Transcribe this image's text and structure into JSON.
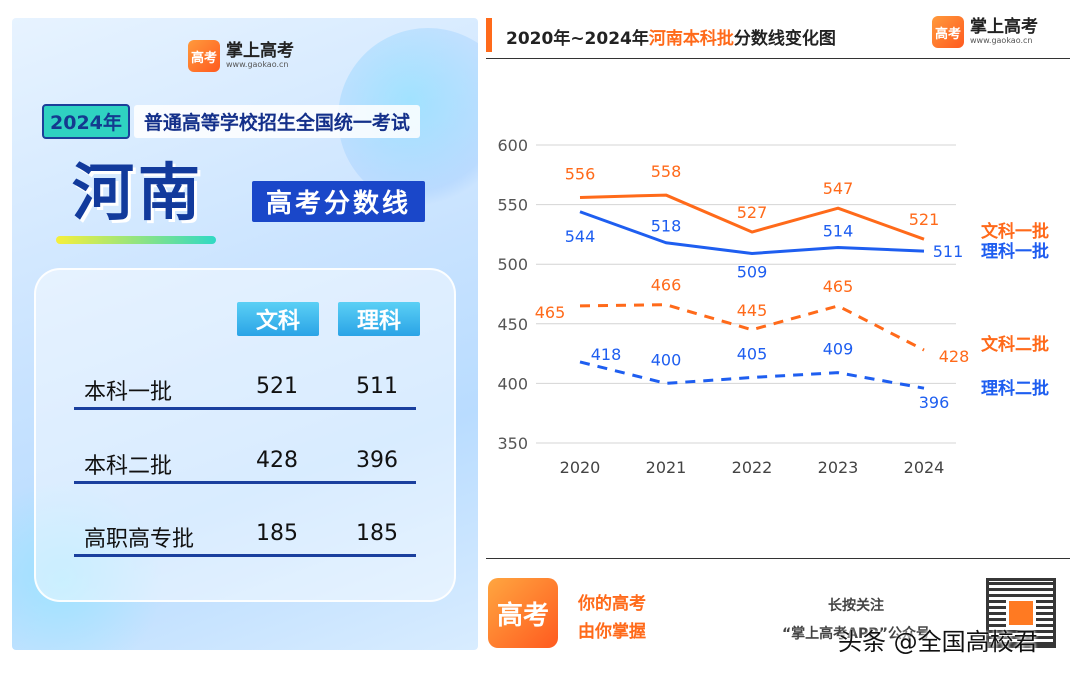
{
  "left": {
    "brand_name": "掌上高考",
    "brand_url": "www.gaokao.cn",
    "logo_text": "高考",
    "year": "2024年",
    "exam": "普通高等学校招生全国统一考试",
    "province": "河南",
    "subtitle": "高考分数线",
    "columns": [
      "文科",
      "理科"
    ],
    "rows": [
      {
        "label": "本科一批",
        "wenke": "521",
        "like": "511"
      },
      {
        "label": "本科二批",
        "wenke": "428",
        "like": "396"
      },
      {
        "label": "高职高专批",
        "wenke": "185",
        "like": "185"
      }
    ]
  },
  "right": {
    "title_prefix": "2020年~2024年",
    "title_highlight": "河南本科批",
    "title_suffix": "分数线变化图",
    "brand_name": "掌上高考",
    "brand_url": "www.gaokao.cn",
    "logo_text": "高考",
    "slogan_line1": "你的高考",
    "slogan_line2": "由你掌握",
    "follow_line1": "长按关注",
    "follow_line2": "“掌上高考APP”公众号"
  },
  "credit": "头条 @全国高校君",
  "colors": {
    "orange": "#ff6a1a",
    "blue": "#1e5ef0",
    "navy": "#1a3f9e"
  },
  "chart_data": {
    "type": "line",
    "x": [
      "2020",
      "2021",
      "2022",
      "2023",
      "2024"
    ],
    "ylim": [
      350,
      600
    ],
    "yticks": [
      350,
      400,
      450,
      500,
      550,
      600
    ],
    "series": [
      {
        "name": "文科一批",
        "values": [
          556,
          558,
          527,
          547,
          521
        ],
        "color": "#ff6a1a",
        "dash": false
      },
      {
        "name": "理科一批",
        "values": [
          544,
          518,
          509,
          514,
          511
        ],
        "color": "#1e5ef0",
        "dash": false
      },
      {
        "name": "文科二批",
        "values": [
          465,
          466,
          445,
          465,
          428
        ],
        "color": "#ff6a1a",
        "dash": true
      },
      {
        "name": "理科二批",
        "values": [
          418,
          400,
          405,
          409,
          396
        ],
        "color": "#1e5ef0",
        "dash": true
      }
    ],
    "grid": true
  }
}
